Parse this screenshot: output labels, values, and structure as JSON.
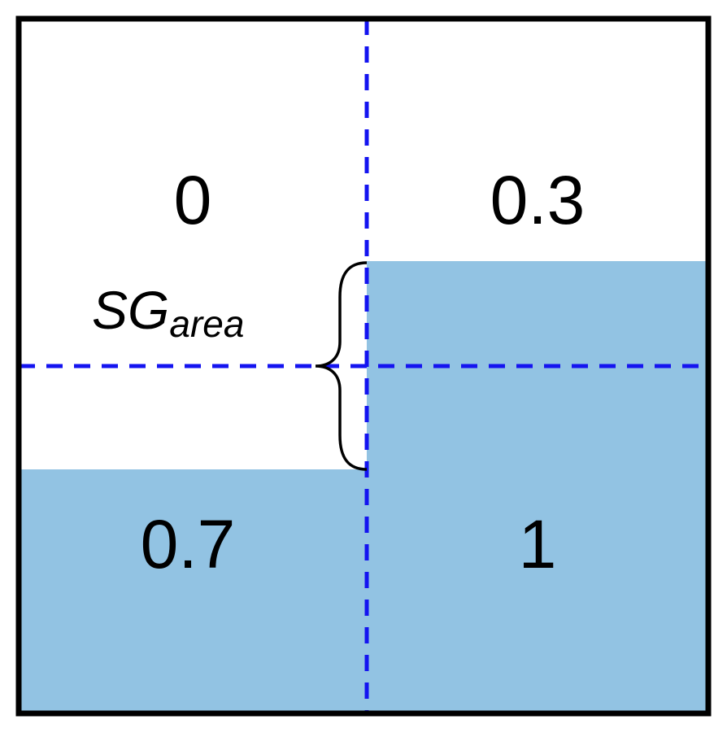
{
  "cells": {
    "top_left": "0",
    "top_right": "0.3",
    "bottom_left": "0.7",
    "bottom_right": "1"
  },
  "brace_label": {
    "main": "SG",
    "subscript": "area"
  },
  "colors": {
    "fill": "#92c3e3",
    "divider": "#1414f0",
    "border": "#000000",
    "background": "#ffffff"
  }
}
